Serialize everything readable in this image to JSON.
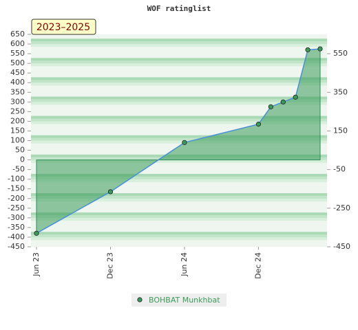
{
  "chart_data": {
    "type": "area",
    "title": "WOF ratinglist",
    "badge": "2023–2025",
    "x": [
      "2023-06",
      "2023-12",
      "2024-06",
      "2024-12",
      "2025-01",
      "2025-02",
      "2025-03",
      "2025-04",
      "2025-05"
    ],
    "series": [
      {
        "name": "BOHBAT Munkhbat",
        "color": "#3a9a5a",
        "values": [
          -380,
          -165,
          90,
          185,
          275,
          300,
          325,
          570,
          575
        ]
      }
    ],
    "xlim": [
      "2023-06",
      "2025-05"
    ],
    "xticks": [
      {
        "value": "2023-06",
        "label": "Jun 23"
      },
      {
        "value": "2023-12",
        "label": "Dec 23"
      },
      {
        "value": "2024-06",
        "label": "Jun 24"
      },
      {
        "value": "2024-12",
        "label": "Dec 24"
      }
    ],
    "ylim": [
      -450,
      650
    ],
    "yticks": [
      -450,
      -400,
      -350,
      -300,
      -250,
      -200,
      -150,
      -100,
      -50,
      0,
      50,
      100,
      150,
      200,
      250,
      300,
      350,
      400,
      450,
      500,
      550,
      600,
      650
    ],
    "y2lim": [
      -450,
      650
    ],
    "y2ticks": [
      -450,
      -250,
      -50,
      150,
      350,
      550
    ]
  }
}
